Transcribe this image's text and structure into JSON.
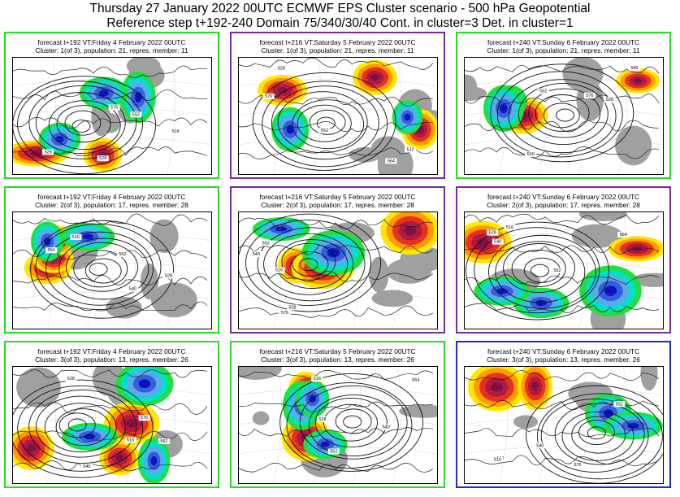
{
  "header": {
    "line1": "Thursday 27 January 2022 00UTC ECMWF EPS Cluster scenario - 500 hPa Geopotential",
    "line2": "Reference step t+192-240 Domain 75/340/30/40 Cont. in cluster=3 Det. in cluster=1"
  },
  "colors": {
    "green_frame": "#22dd22",
    "purple_frame": "#7a2a9c",
    "blue_frame": "#1e2ad6",
    "positive_anomaly": [
      "#ffe800",
      "#ff9a00",
      "#e83020",
      "#b01840",
      "#801040"
    ],
    "negative_anomaly": [
      "#20e040",
      "#00e0d0",
      "#60a8e8",
      "#3060e0",
      "#1010c0"
    ],
    "neutral": "#a0a0a0"
  },
  "panels": [
    {
      "caption1": "forecast t+192 VT:Friday 4 February 2022 00UTC",
      "caption2": "Cluster: 1(of 3), population: 21, repres. member: 11",
      "frame": "green",
      "labels": [
        "576",
        "528",
        "552",
        "516",
        "528"
      ]
    },
    {
      "caption1": "forecast t+216 VT:Saturday 5 February 2022 00UTC",
      "caption2": "Cluster: 1(of 3), population: 21, repres. member: 11",
      "frame": "purple",
      "labels": [
        "576",
        "552",
        "512",
        "528",
        "564"
      ]
    },
    {
      "caption1": "forecast t+240 VT:Sunday 6 February 2022 00UTC",
      "caption2": "Cluster: 1(of 3), population: 21, repres. member: 11",
      "frame": "green",
      "labels": [
        "576",
        "528",
        "552",
        "516",
        "540"
      ]
    },
    {
      "caption1": "forecast t+192 VT:Friday 4 February 2022 00UTC",
      "caption2": "Cluster: 2(of 3), population: 17, repres. member: 28",
      "frame": "green",
      "labels": [
        "552",
        "528",
        "516",
        "564",
        "540"
      ]
    },
    {
      "caption1": "forecast t+216 VT:Saturday 5 February 2022 00UTC",
      "caption2": "Cluster: 2(of 3), population: 17, repres. member: 28",
      "frame": "purple",
      "labels": [
        "576",
        "528",
        "552",
        "516",
        "540"
      ]
    },
    {
      "caption1": "forecast t+240 VT:Sunday 6 February 2022 00UTC",
      "caption2": "Cluster: 2(of 3), population: 17, repres. member: 28",
      "frame": "purple",
      "labels": [
        "552",
        "528",
        "516",
        "564",
        "540"
      ]
    },
    {
      "caption1": "forecast t+192 VT:Friday 4 February 2022 00UTC",
      "caption2": "Cluster: 3(of 3), population: 13, repres. member: 26",
      "frame": "green",
      "labels": [
        "576",
        "528",
        "552",
        "516",
        "540"
      ]
    },
    {
      "caption1": "forecast t+216 VT:Saturday 5 February 2022 00UTC",
      "caption2": "Cluster: 3(of 3), population: 13, repres. member: 26",
      "frame": "green",
      "labels": [
        "552",
        "528",
        "516",
        "564",
        "540"
      ]
    },
    {
      "caption1": "forecast t+240 VT:Sunday 6 February 2022 00UTC",
      "caption2": "Cluster: 3(of 3), population: 13, repres. member: 26",
      "frame": "blue",
      "labels": [
        "576",
        "528",
        "552",
        "516",
        "540"
      ]
    }
  ]
}
